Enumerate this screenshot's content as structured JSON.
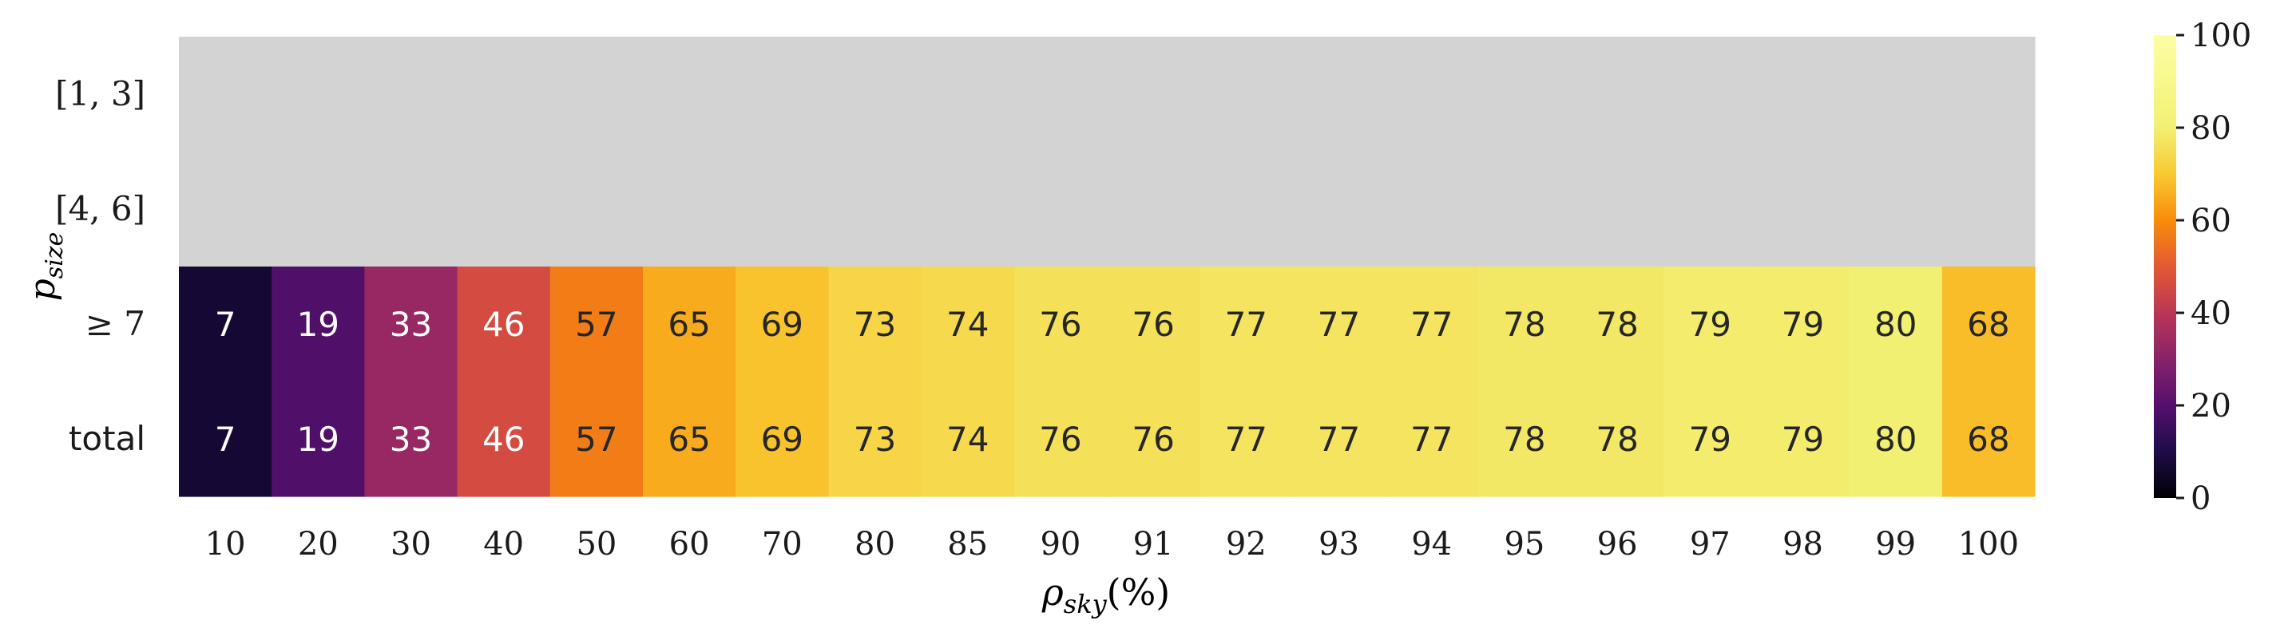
{
  "chart_data": {
    "type": "heatmap",
    "xlabel": "ρsky(%)",
    "ylabel": "psize",
    "x_categories": [
      "10",
      "20",
      "30",
      "40",
      "50",
      "60",
      "70",
      "80",
      "85",
      "90",
      "91",
      "92",
      "93",
      "94",
      "95",
      "96",
      "97",
      "98",
      "99",
      "100"
    ],
    "y_categories": [
      "[1, 3]",
      "[4, 6]",
      "≥ 7",
      "total"
    ],
    "values": [
      [
        null,
        null,
        null,
        null,
        null,
        null,
        null,
        null,
        null,
        null,
        null,
        null,
        null,
        null,
        null,
        null,
        null,
        null,
        null,
        null
      ],
      [
        null,
        null,
        null,
        null,
        null,
        null,
        null,
        null,
        null,
        null,
        null,
        null,
        null,
        null,
        null,
        null,
        null,
        null,
        null,
        null
      ],
      [
        7,
        19,
        33,
        46,
        57,
        65,
        69,
        73,
        74,
        76,
        76,
        77,
        77,
        77,
        78,
        78,
        79,
        79,
        80,
        68
      ],
      [
        7,
        19,
        33,
        46,
        57,
        65,
        69,
        73,
        74,
        76,
        76,
        77,
        77,
        77,
        78,
        78,
        79,
        79,
        80,
        68
      ]
    ],
    "colorbar": {
      "min": 0,
      "max": 100,
      "ticks": [
        "0",
        "20",
        "40",
        "60",
        "80",
        "100"
      ],
      "colormap": "inferno"
    },
    "missing_color": "#d3d3d3"
  }
}
